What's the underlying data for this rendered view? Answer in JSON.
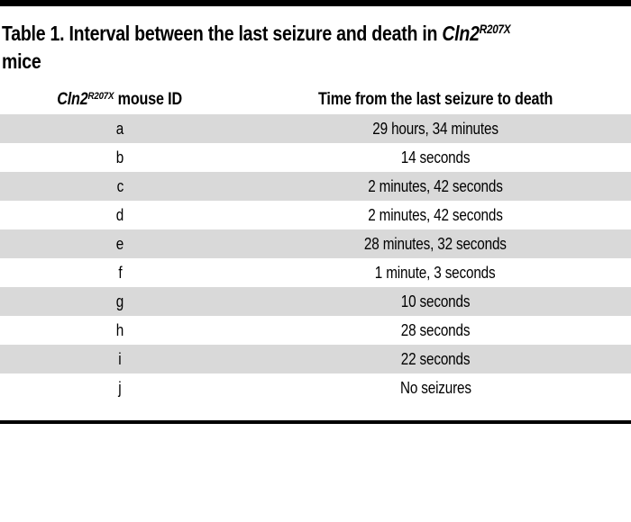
{
  "title": {
    "prefix": "Table 1. Interval between the last seizure and death in ",
    "gene": "Cln2",
    "gene_superscript": "R207X",
    "line2": "mice"
  },
  "header": {
    "col1_gene": "Cln2",
    "col1_superscript": "R207X",
    "col1_rest": " mouse ID",
    "col2": "Time from the last seizure to death"
  },
  "table": {
    "rows": [
      {
        "id": "a",
        "time": "29 hours, 34 minutes"
      },
      {
        "id": "b",
        "time": "14 seconds"
      },
      {
        "id": "c",
        "time": "2 minutes, 42 seconds"
      },
      {
        "id": "d",
        "time": "2 minutes, 42 seconds"
      },
      {
        "id": "e",
        "time": "28 minutes, 32 seconds"
      },
      {
        "id": "f",
        "time": "1 minute, 3 seconds"
      },
      {
        "id": "g",
        "time": "10 seconds"
      },
      {
        "id": "h",
        "time": "28 seconds"
      },
      {
        "id": "i",
        "time": "22 seconds"
      },
      {
        "id": "j",
        "time": "No seizures"
      }
    ]
  },
  "colors": {
    "stripe": "#d9d9d9",
    "rule": "#000000",
    "text": "#000000"
  }
}
